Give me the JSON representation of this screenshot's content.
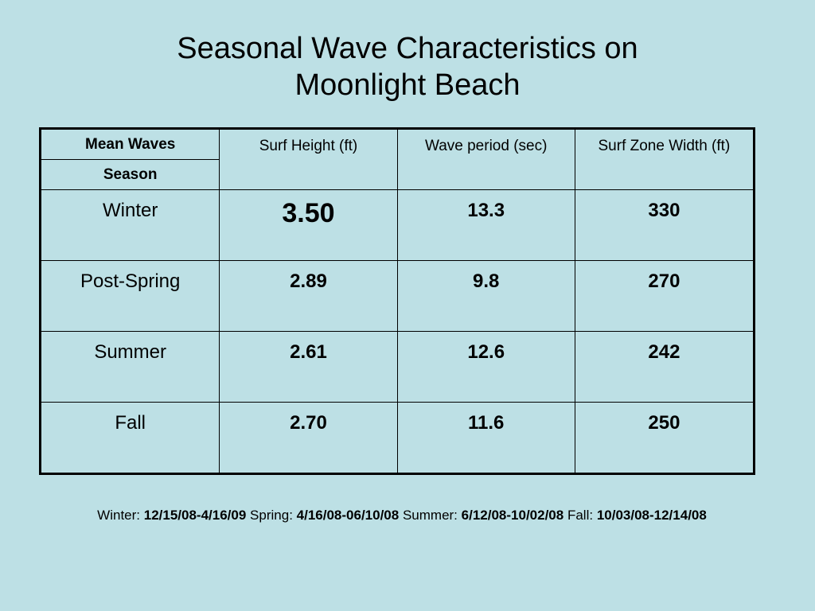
{
  "title": {
    "line1": "Seasonal Wave Characteristics on",
    "line2": "Moonlight Beach"
  },
  "table": {
    "header_label_top": "Mean Waves",
    "header_label_bottom": "Season",
    "columns": [
      "Surf Height (ft)",
      "Wave period (sec)",
      "Surf Zone Width (ft)"
    ],
    "rows": [
      {
        "season": "Winter",
        "surf_height": "3.50",
        "wave_period": "13.3",
        "surf_zone_width": "330"
      },
      {
        "season": "Post-Spring",
        "surf_height": "2.89",
        "wave_period": "9.8",
        "surf_zone_width": "270"
      },
      {
        "season": "Summer",
        "surf_height": "2.61",
        "wave_period": "12.6",
        "surf_zone_width": "242"
      },
      {
        "season": "Fall",
        "surf_height": "2.70",
        "wave_period": "11.6",
        "surf_zone_width": "250"
      }
    ]
  },
  "footnote": {
    "winter_label": "Winter:",
    "winter_dates": "12/15/08-4/16/09",
    "spring_label": "Spring:",
    "spring_dates": "4/16/08-06/10/08",
    "summer_label": "Summer:",
    "summer_dates": "6/12/08-10/02/08",
    "fall_label": "Fall:",
    "fall_dates": "10/03/08-12/14/08"
  },
  "colors": {
    "background": "#bde0e5",
    "text": "#000000",
    "border": "#000000"
  }
}
